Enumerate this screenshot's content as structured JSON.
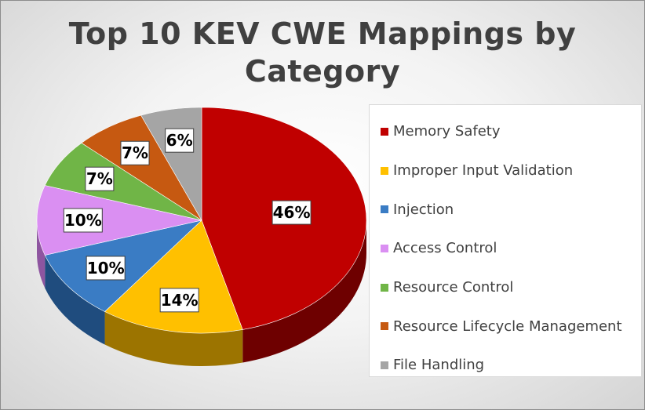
{
  "chart_data": {
    "type": "pie",
    "title_lines": [
      "Top 10 KEV CWE Mappings by",
      "Category"
    ],
    "legend_position": "right",
    "slices": [
      {
        "label": "Memory Safety",
        "value": 46,
        "display": "46%",
        "color": "#C00000",
        "side": "#6E0000"
      },
      {
        "label": "Improper Input Validation",
        "value": 14,
        "display": "14%",
        "color": "#FFC000",
        "side": "#9C7400"
      },
      {
        "label": "Injection",
        "value": 10,
        "display": "10%",
        "color": "#3A7CC4",
        "side": "#1F4C7E"
      },
      {
        "label": "Access Control",
        "value": 10,
        "display": "10%",
        "color": "#DA8FF2",
        "side": "#8E55A0"
      },
      {
        "label": "Resource Control",
        "value": 7,
        "display": "7%",
        "color": "#70B547",
        "side": "#47752C"
      },
      {
        "label": "Resource Lifecycle Management",
        "value": 7,
        "display": "7%",
        "color": "#C65911",
        "side": "#7C3609"
      },
      {
        "label": "File Handling",
        "value": 6,
        "display": "6%",
        "color": "#A5A5A5",
        "side": "#666666"
      }
    ]
  }
}
